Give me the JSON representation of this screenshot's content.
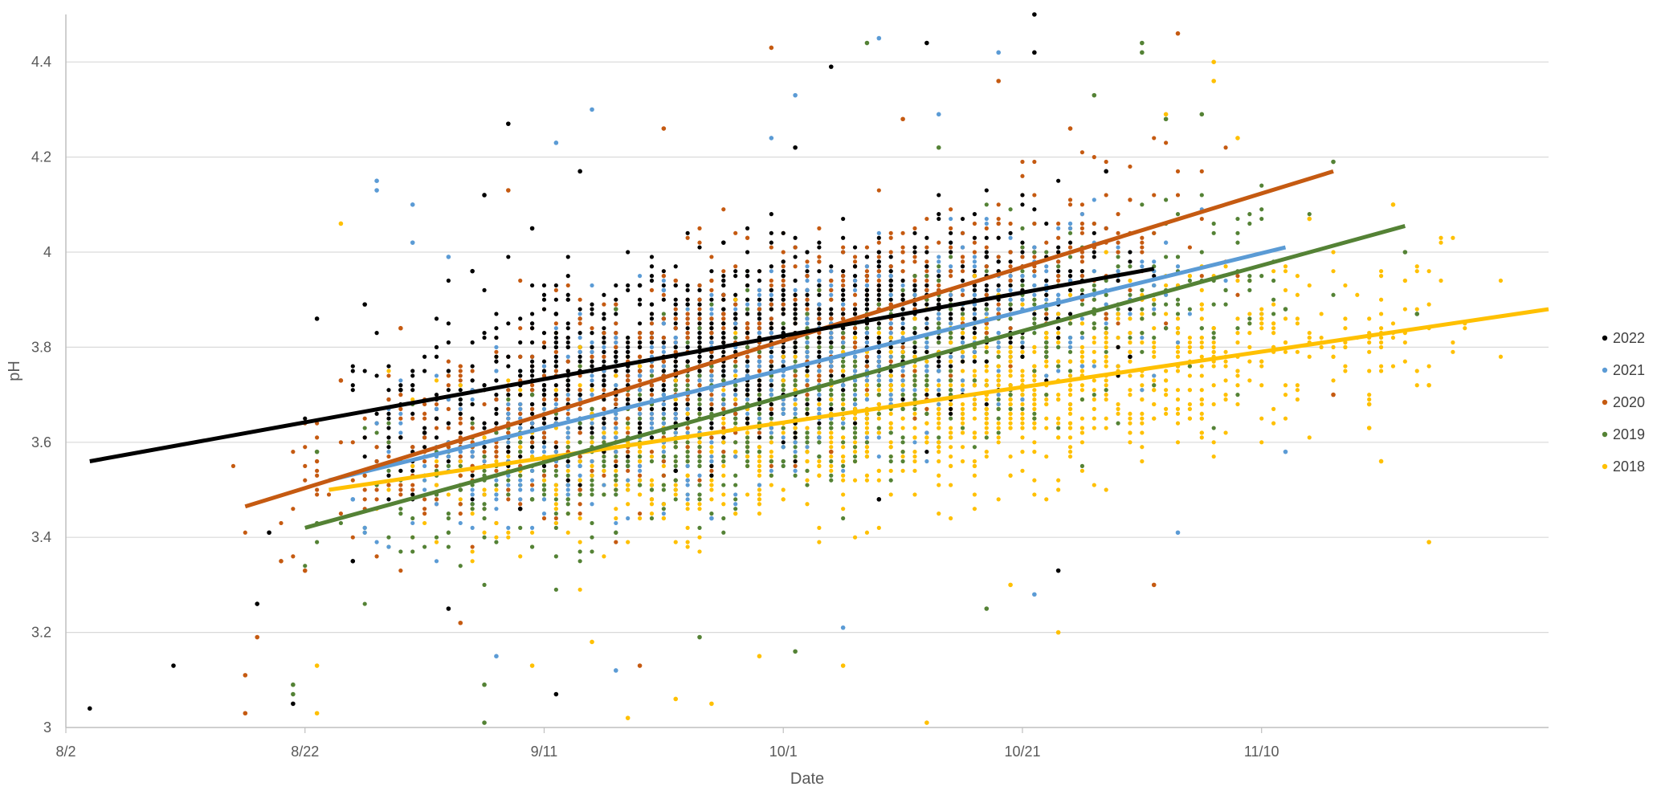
{
  "chart_data": {
    "type": "scatter",
    "xlabel": "Date",
    "ylabel": "pH",
    "x_ticks": [
      "8/2",
      "8/22",
      "9/11",
      "10/1",
      "10/21",
      "11/10"
    ],
    "x_tick_values": [
      "2000-08-02",
      "2000-08-22",
      "2000-09-11",
      "2000-10-01",
      "2000-10-21",
      "2000-11-10"
    ],
    "xlim": [
      "2000-08-02",
      "2000-12-04"
    ],
    "ylim": [
      3,
      4.5
    ],
    "y_ticks": [
      3,
      3.2,
      3.4,
      3.6,
      3.8,
      4,
      4.2,
      4.4
    ],
    "grid": "horizontal",
    "legend": "right",
    "series": [
      {
        "name": "2022",
        "color": "#000000",
        "trendline": [
          {
            "x": "2000-08-04",
            "y": 3.56
          },
          {
            "x": "2000-11-01",
            "y": 3.965
          }
        ],
        "points": [
          {
            "x": "2000-08-04",
            "y": 3.04
          },
          {
            "x": "2000-08-11",
            "y": 3.13
          },
          {
            "x": "2000-08-18",
            "y": 3.26
          },
          {
            "x": "2000-08-19",
            "y": 3.41
          },
          {
            "x": "2000-08-21",
            "y": 3.05
          },
          {
            "x": "2000-08-23",
            "y": 3.86
          },
          {
            "x": "2000-08-26",
            "y": 3.35
          },
          {
            "x": "2000-08-27",
            "y": 3.89
          },
          {
            "x": "2000-08-30",
            "y": 3.71
          },
          {
            "x": "2000-09-01",
            "y": 3.62
          },
          {
            "x": "2000-09-03",
            "y": 3.25
          },
          {
            "x": "2000-09-05",
            "y": 3.96
          },
          {
            "x": "2000-09-06",
            "y": 4.12
          },
          {
            "x": "2000-09-08",
            "y": 4.27
          },
          {
            "x": "2000-09-09",
            "y": 3.46
          },
          {
            "x": "2000-09-10",
            "y": 4.05
          },
          {
            "x": "2000-09-12",
            "y": 3.87
          },
          {
            "x": "2000-09-12",
            "y": 3.07
          },
          {
            "x": "2000-09-14",
            "y": 4.17
          },
          {
            "x": "2000-09-16",
            "y": 3.72
          },
          {
            "x": "2000-09-19",
            "y": 3.93
          },
          {
            "x": "2000-09-22",
            "y": 3.54
          },
          {
            "x": "2000-09-26",
            "y": 4.02
          },
          {
            "x": "2000-09-30",
            "y": 3.66
          },
          {
            "x": "2000-10-02",
            "y": 4.22
          },
          {
            "x": "2000-10-05",
            "y": 4.39
          },
          {
            "x": "2000-10-09",
            "y": 3.48
          },
          {
            "x": "2000-10-13",
            "y": 4.44
          },
          {
            "x": "2000-10-18",
            "y": 3.99
          },
          {
            "x": "2000-10-22",
            "y": 4.5
          },
          {
            "x": "2000-10-22",
            "y": 4.42
          },
          {
            "x": "2000-10-24",
            "y": 3.33
          },
          {
            "x": "2000-10-28",
            "y": 4.17
          },
          {
            "x": "2000-10-30",
            "y": 3.78
          }
        ]
      },
      {
        "name": "2021",
        "color": "#5b9bd5",
        "trendline": [
          {
            "x": "2000-08-24",
            "y": 3.52
          },
          {
            "x": "2000-11-12",
            "y": 4.01
          }
        ],
        "points": [
          {
            "x": "2000-08-26",
            "y": 3.48
          },
          {
            "x": "2000-08-28",
            "y": 4.15
          },
          {
            "x": "2000-08-28",
            "y": 4.13
          },
          {
            "x": "2000-08-31",
            "y": 4.1
          },
          {
            "x": "2000-08-31",
            "y": 4.02
          },
          {
            "x": "2000-09-03",
            "y": 3.99
          },
          {
            "x": "2000-09-05",
            "y": 3.58
          },
          {
            "x": "2000-09-07",
            "y": 3.15
          },
          {
            "x": "2000-09-09",
            "y": 3.63
          },
          {
            "x": "2000-09-12",
            "y": 4.23
          },
          {
            "x": "2000-09-15",
            "y": 4.3
          },
          {
            "x": "2000-09-17",
            "y": 3.12
          },
          {
            "x": "2000-09-21",
            "y": 3.92
          },
          {
            "x": "2000-09-25",
            "y": 3.44
          },
          {
            "x": "2000-09-30",
            "y": 4.24
          },
          {
            "x": "2000-10-02",
            "y": 4.33
          },
          {
            "x": "2000-10-06",
            "y": 3.21
          },
          {
            "x": "2000-10-09",
            "y": 4.45
          },
          {
            "x": "2000-10-14",
            "y": 4.29
          },
          {
            "x": "2000-10-19",
            "y": 4.42
          },
          {
            "x": "2000-10-22",
            "y": 3.28
          },
          {
            "x": "2000-10-26",
            "y": 3.76
          },
          {
            "x": "2000-11-03",
            "y": 3.41
          },
          {
            "x": "2000-11-12",
            "y": 3.58
          }
        ]
      },
      {
        "name": "2020",
        "color": "#c55a11",
        "trendline": [
          {
            "x": "2000-08-17",
            "y": 3.465
          },
          {
            "x": "2000-11-16",
            "y": 4.17
          }
        ],
        "points": [
          {
            "x": "2000-08-17",
            "y": 3.11
          },
          {
            "x": "2000-08-17",
            "y": 3.03
          },
          {
            "x": "2000-08-18",
            "y": 3.19
          },
          {
            "x": "2000-08-20",
            "y": 3.35
          },
          {
            "x": "2000-08-22",
            "y": 3.33
          },
          {
            "x": "2000-08-25",
            "y": 3.73
          },
          {
            "x": "2000-08-30",
            "y": 3.84
          },
          {
            "x": "2000-09-04",
            "y": 3.22
          },
          {
            "x": "2000-09-08",
            "y": 4.13
          },
          {
            "x": "2000-09-14",
            "y": 3.5
          },
          {
            "x": "2000-09-19",
            "y": 3.13
          },
          {
            "x": "2000-09-21",
            "y": 4.26
          },
          {
            "x": "2000-09-26",
            "y": 3.87
          },
          {
            "x": "2000-09-30",
            "y": 4.43
          },
          {
            "x": "2000-10-05",
            "y": 3.58
          },
          {
            "x": "2000-10-11",
            "y": 4.28
          },
          {
            "x": "2000-10-19",
            "y": 4.36
          },
          {
            "x": "2000-10-25",
            "y": 4.26
          },
          {
            "x": "2000-11-01",
            "y": 3.3
          },
          {
            "x": "2000-11-03",
            "y": 4.46
          },
          {
            "x": "2000-11-16",
            "y": 3.7
          }
        ]
      },
      {
        "name": "2019",
        "color": "#548235",
        "trendline": [
          {
            "x": "2000-08-22",
            "y": 3.42
          },
          {
            "x": "2000-11-22",
            "y": 4.055
          }
        ],
        "points": [
          {
            "x": "2000-08-21",
            "y": 3.09
          },
          {
            "x": "2000-08-21",
            "y": 3.07
          },
          {
            "x": "2000-08-23",
            "y": 3.58
          },
          {
            "x": "2000-09-06",
            "y": 3.09
          },
          {
            "x": "2000-09-06",
            "y": 3.01
          },
          {
            "x": "2000-09-10",
            "y": 3.48
          },
          {
            "x": "2000-09-17",
            "y": 3.88
          },
          {
            "x": "2000-09-24",
            "y": 3.19
          },
          {
            "x": "2000-10-02",
            "y": 3.16
          },
          {
            "x": "2000-10-08",
            "y": 4.44
          },
          {
            "x": "2000-10-14",
            "y": 4.22
          },
          {
            "x": "2000-10-18",
            "y": 3.25
          },
          {
            "x": "2000-10-27",
            "y": 4.33
          },
          {
            "x": "2000-10-31",
            "y": 4.44
          },
          {
            "x": "2000-10-31",
            "y": 4.42
          },
          {
            "x": "2000-11-02",
            "y": 4.28
          },
          {
            "x": "2000-11-05",
            "y": 4.29
          },
          {
            "x": "2000-11-12",
            "y": 3.88
          },
          {
            "x": "2000-11-16",
            "y": 4.19
          },
          {
            "x": "2000-11-22",
            "y": 4
          },
          {
            "x": "2000-11-23",
            "y": 3.87
          }
        ]
      },
      {
        "name": "2018",
        "color": "#ffc000",
        "trendline": [
          {
            "x": "2000-08-24",
            "y": 3.5
          },
          {
            "x": "2000-12-04",
            "y": 3.88
          }
        ],
        "points": [
          {
            "x": "2000-08-23",
            "y": 3.03
          },
          {
            "x": "2000-08-23",
            "y": 3.13
          },
          {
            "x": "2000-08-25",
            "y": 4.06
          },
          {
            "x": "2000-09-10",
            "y": 3.13
          },
          {
            "x": "2000-09-15",
            "y": 3.18
          },
          {
            "x": "2000-09-18",
            "y": 3.02
          },
          {
            "x": "2000-09-22",
            "y": 3.06
          },
          {
            "x": "2000-09-25",
            "y": 3.05
          },
          {
            "x": "2000-09-29",
            "y": 3.15
          },
          {
            "x": "2000-10-06",
            "y": 3.13
          },
          {
            "x": "2000-10-13",
            "y": 3.01
          },
          {
            "x": "2000-10-20",
            "y": 3.3
          },
          {
            "x": "2000-10-24",
            "y": 3.2
          },
          {
            "x": "2000-11-02",
            "y": 4.29
          },
          {
            "x": "2000-11-06",
            "y": 4.4
          },
          {
            "x": "2000-11-06",
            "y": 4.36
          },
          {
            "x": "2000-11-08",
            "y": 4.24
          },
          {
            "x": "2000-11-14",
            "y": 4.07
          },
          {
            "x": "2000-11-19",
            "y": 3.68
          },
          {
            "x": "2000-11-19",
            "y": 3.63
          },
          {
            "x": "2000-11-20",
            "y": 3.56
          },
          {
            "x": "2000-11-21",
            "y": 4.1
          },
          {
            "x": "2000-11-24",
            "y": 3.72
          },
          {
            "x": "2000-11-24",
            "y": 3.39
          }
        ]
      }
    ]
  }
}
